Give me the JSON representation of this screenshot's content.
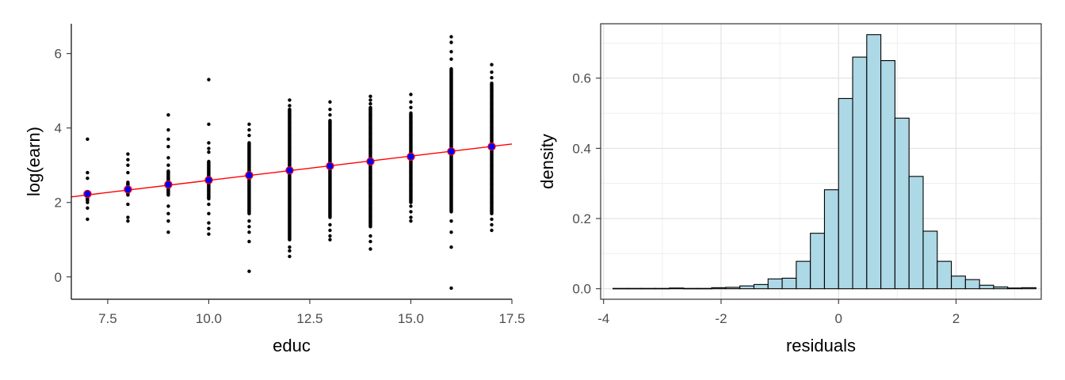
{
  "chart_data": [
    {
      "type": "scatter",
      "title": "",
      "xlabel": "educ",
      "ylabel": "log(earn)",
      "xlim": [
        6.6,
        17.5
      ],
      "ylim": [
        -0.6,
        6.8
      ],
      "xticks": [
        7.5,
        10.0,
        12.5,
        15.0,
        17.5
      ],
      "xtick_labels": [
        "7.5",
        "10.0",
        "12.5",
        "15.0",
        "17.5"
      ],
      "yticks": [
        0,
        2,
        4,
        6
      ],
      "ytick_labels": [
        "0",
        "2",
        "4",
        "6"
      ],
      "grid": false,
      "point_color": "#000000",
      "points_by_educ": [
        {
          "x": 7,
          "extremes": [
            1.55,
            3.7
          ],
          "solid_range": [
            2.05,
            2.3
          ],
          "scattered": [
            2.65,
            2.8,
            2.0,
            1.85
          ]
        },
        {
          "x": 8,
          "extremes": [
            1.5,
            3.3
          ],
          "solid_range": [
            2.2,
            2.55
          ],
          "scattered": [
            2.8,
            3.0,
            3.15,
            1.95,
            1.6
          ]
        },
        {
          "x": 9,
          "extremes": [
            1.2,
            4.35
          ],
          "solid_range": [
            2.2,
            2.85
          ],
          "scattered": [
            3.95,
            3.7,
            3.5,
            3.2,
            3.0,
            1.9,
            1.7,
            1.5
          ]
        },
        {
          "x": 10,
          "extremes": [
            1.15,
            5.3
          ],
          "solid_range": [
            2.1,
            3.1
          ],
          "scattered": [
            4.1,
            3.6,
            3.45,
            3.35,
            1.95,
            1.7,
            1.45,
            1.3
          ]
        },
        {
          "x": 11,
          "extremes": [
            0.15,
            4.1
          ],
          "solid_range": [
            1.7,
            3.6
          ],
          "scattered": [
            3.95,
            3.8,
            1.5,
            1.35,
            1.2,
            0.95
          ]
        },
        {
          "x": 12,
          "extremes": [
            0.55,
            4.75
          ],
          "solid_range": [
            1.0,
            4.5
          ],
          "scattered": [
            4.6,
            0.8,
            0.7
          ]
        },
        {
          "x": 13,
          "extremes": [
            1.0,
            4.7
          ],
          "solid_range": [
            1.6,
            4.2
          ],
          "scattered": [
            4.5,
            4.35,
            1.4,
            1.25,
            1.1
          ]
        },
        {
          "x": 14,
          "extremes": [
            0.75,
            4.85
          ],
          "solid_range": [
            1.35,
            4.55
          ],
          "scattered": [
            4.75,
            4.65,
            1.1,
            0.95
          ]
        },
        {
          "x": 15,
          "extremes": [
            1.5,
            4.9
          ],
          "solid_range": [
            2.0,
            4.4
          ],
          "scattered": [
            4.7,
            4.55,
            1.9,
            1.75,
            1.6
          ]
        },
        {
          "x": 16,
          "extremes": [
            -0.3,
            6.45
          ],
          "solid_range": [
            1.75,
            5.6
          ],
          "scattered": [
            6.3,
            6.05,
            5.85,
            1.5,
            1.2,
            0.8
          ]
        },
        {
          "x": 17,
          "extremes": [
            1.25,
            5.7
          ],
          "solid_range": [
            1.7,
            5.2
          ],
          "scattered": [
            5.5,
            5.35,
            1.55,
            1.4
          ]
        }
      ],
      "group_means": {
        "x": [
          7,
          8,
          9,
          10,
          11,
          12,
          13,
          14,
          15,
          16,
          17
        ],
        "y": [
          2.23,
          2.35,
          2.48,
          2.6,
          2.73,
          2.86,
          2.98,
          3.1,
          3.23,
          3.37,
          3.5
        ],
        "fill": "#0000ff",
        "edge": "#ff0000"
      },
      "fit_line": {
        "x": [
          6.6,
          17.5
        ],
        "y": [
          2.15,
          3.57
        ],
        "color": "#ff0000"
      }
    },
    {
      "type": "bar",
      "title": "",
      "xlabel": "residuals",
      "ylabel": "density",
      "xlim": [
        -4.05,
        3.45
      ],
      "ylim": [
        -0.03,
        0.755
      ],
      "xticks": [
        -4,
        -2,
        0,
        2
      ],
      "xtick_labels": [
        "-4",
        "-2",
        "0",
        "2"
      ],
      "yticks": [
        0.0,
        0.2,
        0.4,
        0.6
      ],
      "ytick_labels": [
        "0.0",
        "0.2",
        "0.4",
        "0.6"
      ],
      "grid": true,
      "bar_fill": "#add8e6",
      "bar_edge": "#000000",
      "bin_width": 0.24,
      "bins_start": -3.84,
      "density": [
        0.001,
        0.001,
        0.001,
        0.001,
        0.002,
        0.001,
        0.001,
        0.003,
        0.004,
        0.008,
        0.012,
        0.028,
        0.03,
        0.078,
        0.158,
        0.282,
        0.542,
        0.66,
        0.724,
        0.65,
        0.486,
        0.32,
        0.164,
        0.078,
        0.036,
        0.026,
        0.01,
        0.005,
        0.002,
        0.003
      ]
    }
  ]
}
